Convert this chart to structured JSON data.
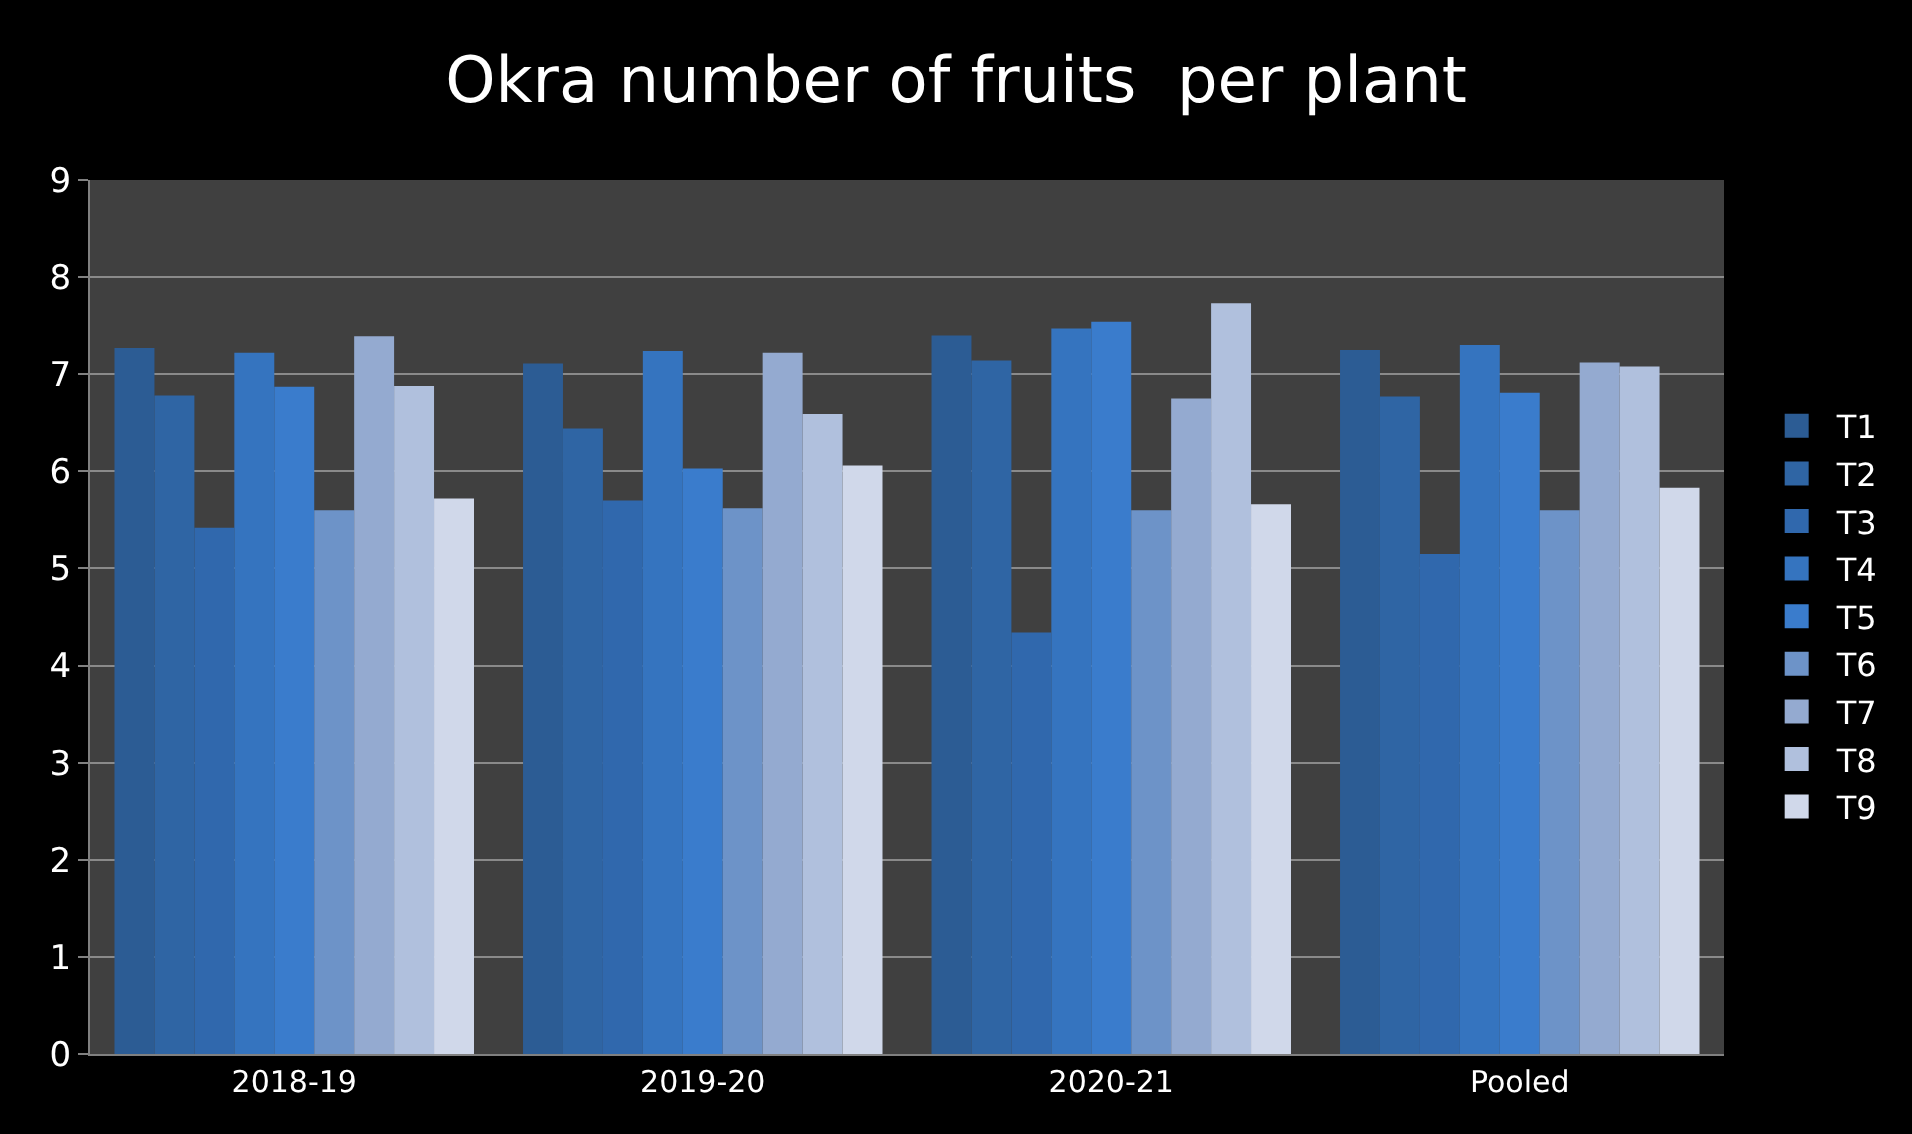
{
  "chart_data": {
    "type": "bar",
    "title": "Okra number of fruits  per plant",
    "categories": [
      "2018-19",
      "2019-20",
      "2020-21",
      "Pooled"
    ],
    "series": [
      {
        "name": "T1",
        "color": "#2c5c94",
        "values": [
          7.27,
          7.11,
          7.4,
          7.25
        ]
      },
      {
        "name": "T2",
        "color": "#2f65a4",
        "values": [
          6.78,
          6.44,
          7.14,
          6.77
        ]
      },
      {
        "name": "T3",
        "color": "#3068ad",
        "values": [
          5.42,
          5.7,
          4.34,
          5.15
        ]
      },
      {
        "name": "T4",
        "color": "#3574bf",
        "values": [
          7.22,
          7.24,
          7.47,
          7.3
        ]
      },
      {
        "name": "T5",
        "color": "#3a7ccc",
        "values": [
          6.87,
          6.03,
          7.54,
          6.81
        ]
      },
      {
        "name": "T6",
        "color": "#6d93c8",
        "values": [
          5.6,
          5.62,
          5.6,
          5.6
        ]
      },
      {
        "name": "T7",
        "color": "#94aad0",
        "values": [
          7.39,
          7.22,
          6.75,
          7.12
        ]
      },
      {
        "name": "T8",
        "color": "#b0c0dd",
        "values": [
          6.88,
          6.59,
          7.73,
          7.08
        ]
      },
      {
        "name": "T9",
        "color": "#d0d8ea",
        "values": [
          5.72,
          6.06,
          5.66,
          5.83
        ]
      }
    ],
    "ylim": [
      0,
      9
    ],
    "yticks": [
      0,
      1,
      2,
      3,
      4,
      5,
      6,
      7,
      8,
      9
    ],
    "grid": "y",
    "legend": "right"
  }
}
